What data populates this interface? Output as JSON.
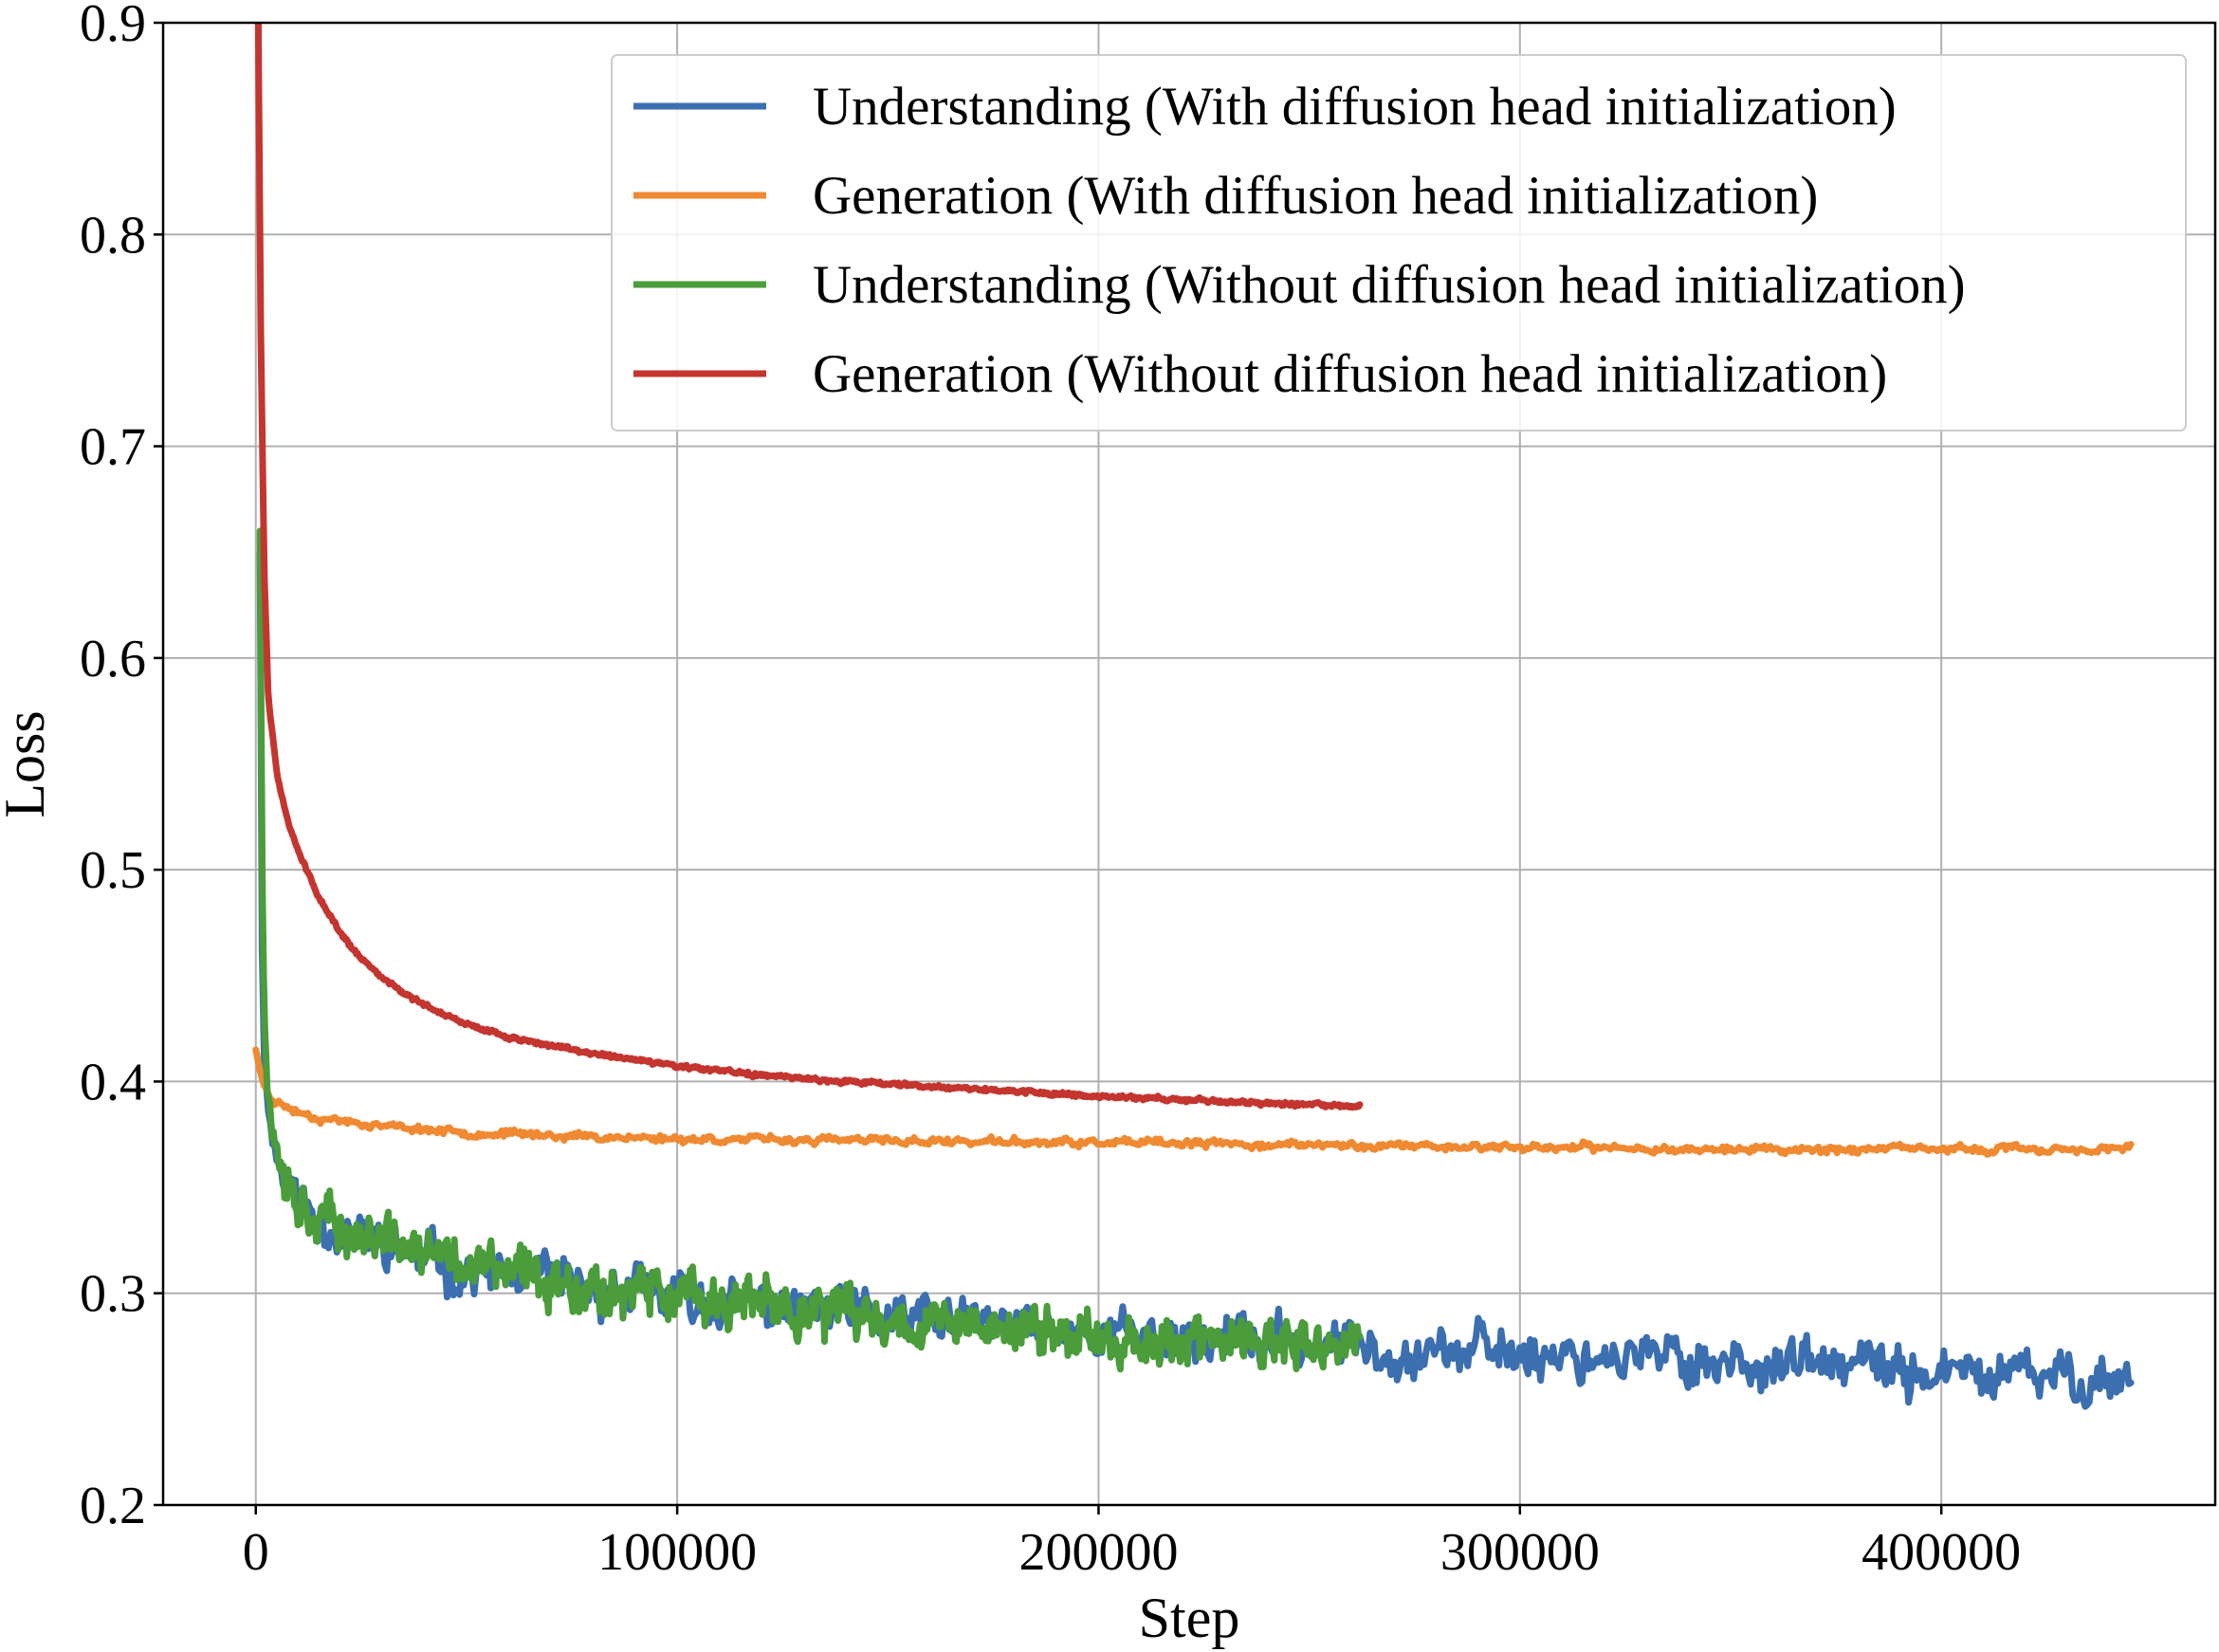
{
  "chart_data": {
    "type": "line",
    "title": "",
    "xlabel": "Step",
    "ylabel": "Loss",
    "xlim": [
      -22000,
      465000
    ],
    "ylim": [
      0.2,
      0.9
    ],
    "xticks": [
      0,
      100000,
      200000,
      300000,
      400000
    ],
    "xtick_labels": [
      "0",
      "100000",
      "200000",
      "300000",
      "400000"
    ],
    "yticks": [
      0.2,
      0.3,
      0.4,
      0.5,
      0.6,
      0.7,
      0.8,
      0.9
    ],
    "ytick_labels": [
      "0.2",
      "0.3",
      "0.4",
      "0.5",
      "0.6",
      "0.7",
      "0.8",
      "0.9"
    ],
    "grid": true,
    "legend_position": "top-right",
    "series": [
      {
        "name": "Understanding (With diffusion head initialization)",
        "color": "#3b6fb0",
        "noise": 0.014,
        "seed": 11,
        "x": [
          1000,
          1500,
          2000,
          3000,
          5000,
          8000,
          12000,
          20000,
          35000,
          50000,
          75000,
          100000,
          125000,
          150000,
          175000,
          200000,
          225000,
          250000,
          275000,
          300000,
          325000,
          350000,
          375000,
          400000,
          425000,
          445000
        ],
        "y": [
          0.65,
          0.46,
          0.41,
          0.385,
          0.365,
          0.35,
          0.34,
          0.33,
          0.32,
          0.31,
          0.303,
          0.297,
          0.293,
          0.288,
          0.285,
          0.282,
          0.279,
          0.276,
          0.274,
          0.272,
          0.27,
          0.268,
          0.265,
          0.262,
          0.26,
          0.26
        ]
      },
      {
        "name": "Generation (With diffusion head initialization)",
        "color": "#ef8a32",
        "noise": 0.0022,
        "seed": 23,
        "x": [
          0,
          1000,
          2000,
          4000,
          8000,
          15000,
          30000,
          50000,
          80000,
          100000,
          150000,
          200000,
          250000,
          300000,
          350000,
          400000,
          445000
        ],
        "y": [
          0.415,
          0.405,
          0.398,
          0.392,
          0.387,
          0.383,
          0.379,
          0.376,
          0.374,
          0.373,
          0.372,
          0.371,
          0.37,
          0.369,
          0.368,
          0.368,
          0.368
        ]
      },
      {
        "name": "Understanding (Without diffusion head initialization)",
        "color": "#4a9d3a",
        "noise": 0.014,
        "seed": 37,
        "x": [
          1000,
          1500,
          2000,
          3000,
          5000,
          8000,
          12000,
          20000,
          35000,
          50000,
          75000,
          100000,
          125000,
          150000,
          175000,
          200000,
          225000,
          250000,
          262000
        ],
        "y": [
          0.66,
          0.5,
          0.43,
          0.39,
          0.37,
          0.352,
          0.34,
          0.33,
          0.322,
          0.313,
          0.305,
          0.298,
          0.293,
          0.288,
          0.284,
          0.28,
          0.277,
          0.274,
          0.275
        ]
      },
      {
        "name": "Generation (Without diffusion head initialization)",
        "color": "#c4352f",
        "noise": 0.0012,
        "seed": 51,
        "x": [
          600,
          1200,
          2000,
          3000,
          5000,
          8000,
          12000,
          16000,
          20000,
          25000,
          30000,
          40000,
          50000,
          60000,
          75000,
          100000,
          125000,
          150000,
          175000,
          200000,
          225000,
          250000,
          262000
        ],
        "y": [
          0.9,
          0.75,
          0.64,
          0.58,
          0.545,
          0.52,
          0.5,
          0.483,
          0.47,
          0.458,
          0.449,
          0.436,
          0.427,
          0.421,
          0.415,
          0.407,
          0.402,
          0.399,
          0.396,
          0.393,
          0.391,
          0.389,
          0.388
        ]
      }
    ]
  }
}
